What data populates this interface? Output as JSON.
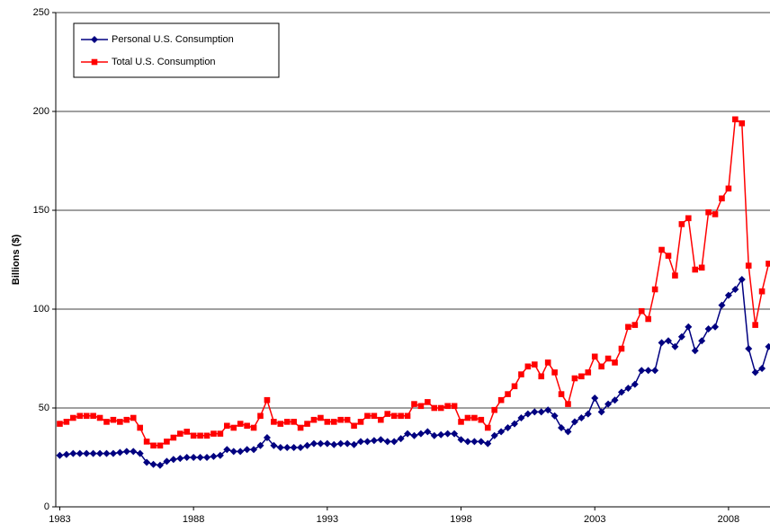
{
  "chart_data": {
    "type": "line",
    "ylabel": "Billions ($)",
    "x": [
      1983,
      1983.25,
      1983.5,
      1983.75,
      1984,
      1984.25,
      1984.5,
      1984.75,
      1985,
      1985.25,
      1985.5,
      1985.75,
      1986,
      1986.25,
      1986.5,
      1986.75,
      1987,
      1987.25,
      1987.5,
      1987.75,
      1988,
      1988.25,
      1988.5,
      1988.75,
      1989,
      1989.25,
      1989.5,
      1989.75,
      1990,
      1990.25,
      1990.5,
      1990.75,
      1991,
      1991.25,
      1991.5,
      1991.75,
      1992,
      1992.25,
      1992.5,
      1992.75,
      1993,
      1993.25,
      1993.5,
      1993.75,
      1994,
      1994.25,
      1994.5,
      1994.75,
      1995,
      1995.25,
      1995.5,
      1995.75,
      1996,
      1996.25,
      1996.5,
      1996.75,
      1997,
      1997.25,
      1997.5,
      1997.75,
      1998,
      1998.25,
      1998.5,
      1998.75,
      1999,
      1999.25,
      1999.5,
      1999.75,
      2000,
      2000.25,
      2000.5,
      2000.75,
      2001,
      2001.25,
      2001.5,
      2001.75,
      2002,
      2002.25,
      2002.5,
      2002.75,
      2003,
      2003.25,
      2003.5,
      2003.75,
      2004,
      2004.25,
      2004.5,
      2004.75,
      2005,
      2005.25,
      2005.5,
      2005.75,
      2006,
      2006.25,
      2006.5,
      2006.75,
      2007,
      2007.25,
      2007.5,
      2007.75,
      2008,
      2008.25,
      2008.5,
      2008.75,
      2009,
      2009.25,
      2009.5
    ],
    "series": [
      {
        "name": "Personal U.S. Consumption",
        "color": "#000080",
        "marker": "diamond",
        "values": [
          26,
          26.5,
          27,
          27,
          27,
          27,
          27,
          27,
          27,
          27.5,
          28,
          28,
          27,
          22.5,
          21.5,
          21,
          23,
          24,
          24.5,
          25,
          25,
          25,
          25,
          25.5,
          26,
          29,
          28,
          28,
          29,
          29,
          31,
          35,
          31,
          30,
          30,
          30,
          30,
          31,
          32,
          32,
          32,
          31.5,
          32,
          32,
          31.5,
          33,
          33,
          33.5,
          34,
          33,
          33,
          34.5,
          37,
          36,
          37,
          38,
          36,
          36.5,
          37,
          37,
          34,
          33,
          33,
          33,
          32,
          36,
          38,
          40,
          42,
          45,
          47,
          48,
          48,
          49,
          46,
          40,
          38,
          43,
          45,
          47,
          55,
          48,
          52,
          54,
          58,
          60,
          62,
          69,
          69,
          69,
          83,
          84,
          81,
          86,
          91,
          79,
          84,
          90,
          91,
          102,
          107,
          110,
          115,
          80,
          68,
          70,
          81
        ]
      },
      {
        "name": "Total U.S. Consumption",
        "color": "#ff0000",
        "marker": "square",
        "values": [
          42,
          43,
          45,
          46,
          46,
          46,
          45,
          43,
          44,
          43,
          44,
          45,
          40,
          33,
          31,
          31,
          33,
          35,
          37,
          38,
          36,
          36,
          36,
          37,
          37,
          41,
          40,
          42,
          41,
          40,
          46,
          54,
          43,
          42,
          43,
          43,
          40,
          42,
          44,
          45,
          43,
          43,
          44,
          44,
          41,
          43,
          46,
          46,
          44,
          47,
          46,
          46,
          46,
          52,
          51,
          53,
          50,
          50,
          51,
          51,
          43,
          45,
          45,
          44,
          40,
          49,
          54,
          57,
          61,
          67,
          71,
          72,
          66,
          73,
          68,
          57,
          52,
          65,
          66,
          68,
          76,
          71,
          75,
          73,
          80,
          91,
          92,
          99,
          95,
          110,
          130,
          127,
          117,
          143,
          146,
          120,
          121,
          149,
          148,
          156,
          161,
          196,
          194,
          122,
          92,
          109,
          123
        ]
      }
    ],
    "xlim": [
      1982.85,
      2009.55
    ],
    "xticks": [
      1983,
      1988,
      1993,
      1998,
      2003,
      2008
    ],
    "ylim": [
      0,
      250
    ],
    "yticks": [
      0,
      50,
      100,
      150,
      200,
      250
    ],
    "grid": true,
    "legend": "upper left"
  }
}
